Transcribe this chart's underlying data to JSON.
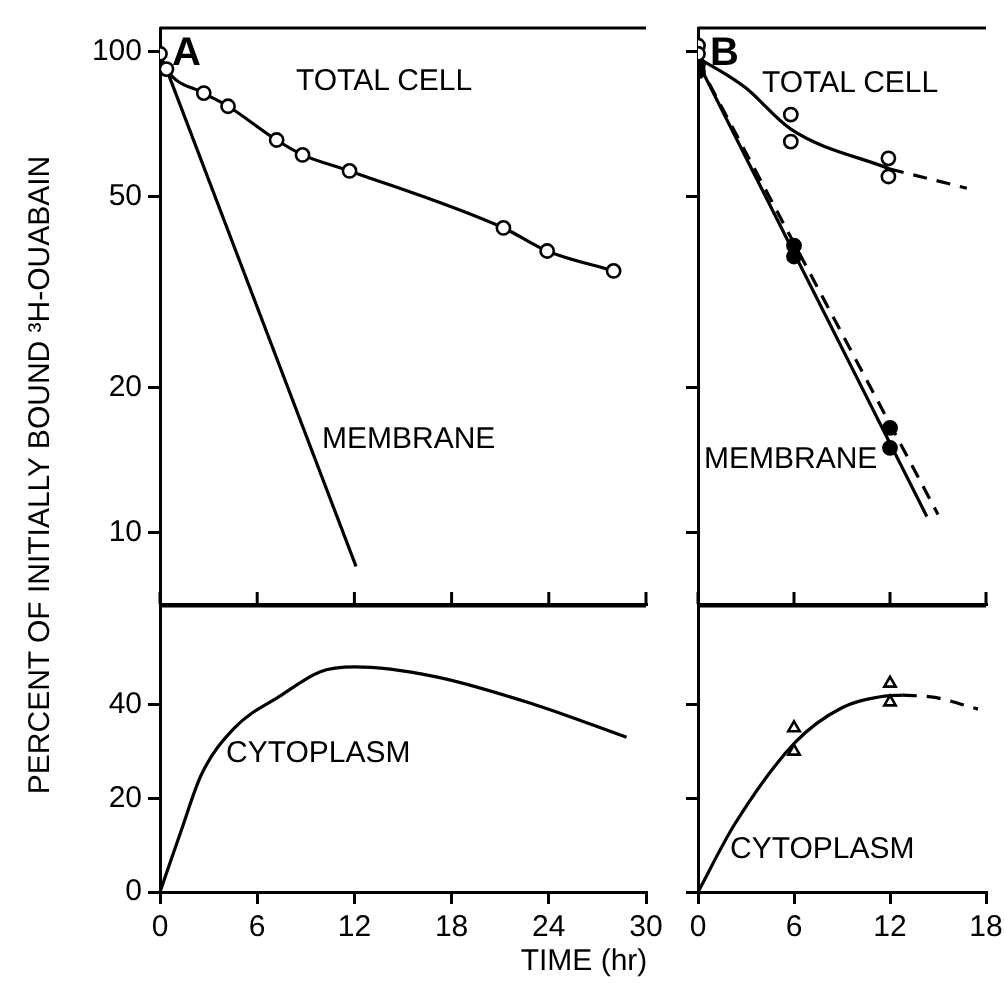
{
  "chart_data": [
    {
      "type": "line",
      "title": "A",
      "ylabel": "PERCENT OF INITIALLY BOUND ³H-OUABAIN",
      "xlim": [
        0,
        30
      ],
      "xticks": [
        {
          "value": 0,
          "label": null
        },
        {
          "value": 6,
          "label": null
        },
        {
          "value": 12,
          "label": null
        },
        {
          "value": 18,
          "label": null
        },
        {
          "value": 24,
          "label": null
        },
        {
          "value": 30,
          "label": null
        }
      ],
      "ylim": [
        7.1,
        112
      ],
      "yticks": [
        10,
        20,
        50,
        100
      ],
      "log": true,
      "tick_labels": "y",
      "series": [
        {
          "type": "line",
          "marker": "circle",
          "color": "#000000",
          "x": [
            0,
            0.4,
            2.7,
            4.2,
            7.2,
            8.8,
            11.7,
            21.2,
            23.9,
            28
          ],
          "values": [
            99,
            92,
            82,
            77,
            65.5,
            61,
            56.5,
            43,
            38.5,
            35
          ]
        },
        {
          "type": "line",
          "color": "#000000",
          "x": [
            0.4,
            12.1
          ],
          "values": [
            92,
            8.5
          ]
        }
      ],
      "annotations": [
        "TOTAL CELL",
        "MEMBRANE"
      ]
    },
    {
      "type": "line",
      "title": "B",
      "xlim": [
        0,
        18
      ],
      "xticks": [
        {
          "value": 0,
          "label": null
        },
        {
          "value": 6,
          "label": null
        },
        {
          "value": 12,
          "label": null
        },
        {
          "value": 18,
          "label": null
        }
      ],
      "ylim": [
        7.1,
        112
      ],
      "yticks": [
        {
          "value": 10,
          "label": null
        },
        {
          "value": 20,
          "label": null
        },
        {
          "value": 50,
          "label": null
        },
        {
          "value": 100,
          "label": null
        }
      ],
      "log": true,
      "tick_labels": false,
      "series": [
        {
          "type": "scatter",
          "marker": "circle",
          "color": "#000000",
          "x": [
            0,
            0,
            5.8,
            5.8,
            11.9,
            11.9
          ],
          "values": [
            103,
            99,
            74,
            65,
            60,
            55
          ]
        },
        {
          "type": "scatter",
          "marker": "circle",
          "color": "#000000",
          "x": [
            0,
            0,
            6,
            6,
            12,
            12
          ],
          "values": [
            94,
            91,
            39.5,
            37.5,
            16.5,
            15
          ]
        },
        {
          "type": "line",
          "color": "#000000",
          "x": [
            0,
            1.8,
            3,
            5.8,
            12
          ],
          "values": [
            97,
            89.5,
            84,
            69,
            57
          ]
        },
        {
          "type": "line",
          "line_style": "dashed",
          "color": "#000000",
          "x": [
            12,
            16.8
          ],
          "values": [
            57,
            52
          ]
        },
        {
          "type": "line",
          "color": "#000000",
          "x": [
            0,
            14.3
          ],
          "values": [
            95,
            10.8
          ]
        },
        {
          "type": "line",
          "line_style": "dashed",
          "color": "#000000",
          "x": [
            0,
            15
          ],
          "values": [
            95,
            10.9
          ]
        }
      ],
      "annotations": [
        "TOTAL CELL",
        "MEMBRANE"
      ]
    },
    {
      "type": "line",
      "xlabel": "TIME (hr)",
      "xlim": [
        0,
        30
      ],
      "xticks": [
        0,
        6,
        12,
        18,
        24,
        30
      ],
      "ylim": [
        0,
        61
      ],
      "yticks": [
        0,
        20,
        40
      ],
      "series": [
        {
          "type": "line",
          "color": "#000000",
          "x": [
            0,
            1.3,
            2.55,
            4.6,
            7.5,
            9.9,
            12,
            16.9,
            23.1,
            28.8
          ],
          "values": [
            0,
            13,
            25,
            35,
            42,
            47,
            48,
            46,
            40,
            33
          ]
        }
      ],
      "annotations": [
        "CYTOPLASM"
      ]
    },
    {
      "type": "line",
      "xlim": [
        0,
        18
      ],
      "xticks": [
        0,
        6,
        12,
        18
      ],
      "ylim": [
        0,
        61
      ],
      "yticks": [
        {
          "value": 0,
          "label": null
        },
        {
          "value": 20,
          "label": null
        },
        {
          "value": 40,
          "label": null
        }
      ],
      "tick_labels": "x",
      "series": [
        {
          "type": "scatter",
          "marker": "triangle",
          "color": "#000000",
          "x": [
            6,
            6,
            12,
            12
          ],
          "values": [
            35,
            30,
            44.5,
            40.5
          ]
        },
        {
          "type": "line",
          "color": "#000000",
          "x": [
            0,
            2.3,
            6.1,
            9,
            11.5,
            12.8
          ],
          "values": [
            0,
            14.5,
            32,
            39.3,
            41.7,
            42
          ]
        },
        {
          "type": "line",
          "line_style": "dashed",
          "color": "#000000",
          "x": [
            12.8,
            14.8,
            17.5
          ],
          "values": [
            42,
            41.5,
            39
          ]
        }
      ],
      "annotations": [
        "CYTOPLASM"
      ]
    }
  ]
}
